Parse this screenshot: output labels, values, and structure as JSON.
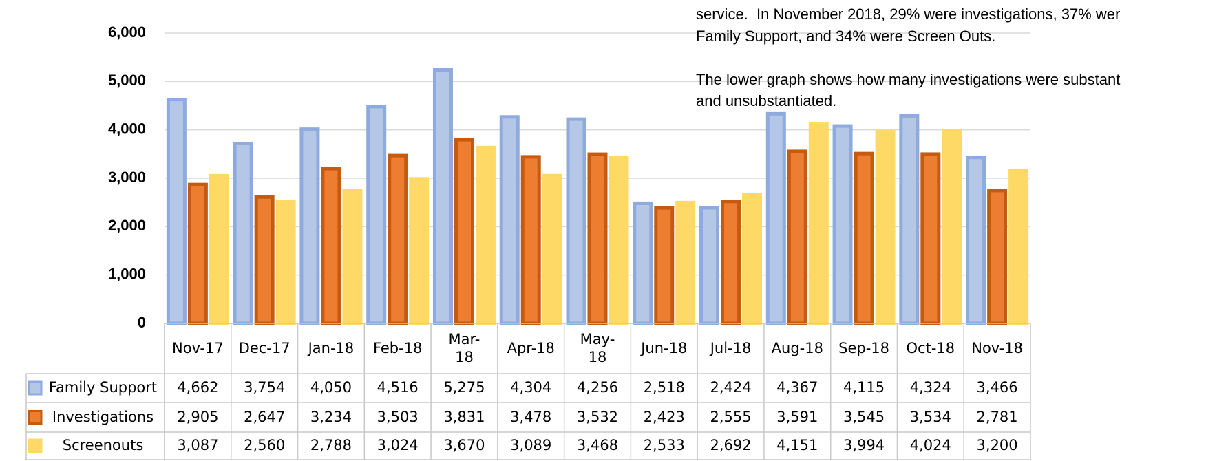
{
  "chart_data": {
    "type": "bar",
    "annotations": [
      "service.  In November 2018, 29% were investigations, 37% wer",
      "Family Support, and 34% were Screen Outs.",
      "The lower graph shows how many investigations were substant",
      "and unsubstantiated."
    ],
    "categories": [
      "Nov-17",
      "Dec-17",
      "Jan-18",
      "Feb-18",
      "Mar-\n18",
      "Apr-18",
      "May-\n18",
      "Jun-18",
      "Jul-18",
      "Aug-18",
      "Sep-18",
      "Oct-18",
      "Nov-18"
    ],
    "series": [
      {
        "name": "Family Support",
        "color": "#b4c7e7",
        "border": "#8faadc",
        "values": [
          4662,
          3754,
          4050,
          4516,
          5275,
          4304,
          4256,
          2518,
          2424,
          4367,
          4115,
          4324,
          3466
        ],
        "value_labels": [
          "4,662",
          "3,754",
          "4,050",
          "4,516",
          "5,275",
          "4,304",
          "4,256",
          "2,518",
          "2,424",
          "4,367",
          "4,115",
          "4,324",
          "3,466"
        ]
      },
      {
        "name": "Investigations",
        "color": "#ed7d31",
        "border": "#c55a11",
        "values": [
          2905,
          2647,
          3234,
          3503,
          3831,
          3478,
          3532,
          2423,
          2555,
          3591,
          3545,
          3534,
          2781
        ],
        "value_labels": [
          "2,905",
          "2,647",
          "3,234",
          "3,503",
          "3,831",
          "3,478",
          "3,532",
          "2,423",
          "2,555",
          "3,591",
          "3,545",
          "3,534",
          "2,781"
        ]
      },
      {
        "name": "Screenouts",
        "color": "#ffd966",
        "border": "#ffd966",
        "values": [
          3087,
          2560,
          2788,
          3024,
          3670,
          3089,
          3468,
          2533,
          2692,
          4151,
          3994,
          4024,
          3200
        ],
        "value_labels": [
          "3,087",
          "2,560",
          "2,788",
          "3,024",
          "3,670",
          "3,089",
          "3,468",
          "2,533",
          "2,692",
          "4,151",
          "3,994",
          "4,024",
          "3,200"
        ]
      }
    ],
    "ylim": [
      0,
      6000
    ],
    "yticks": [
      0,
      {
        "value": 1000,
        "label": "1,000"
      },
      {
        "value": 2000,
        "label": "2,000"
      },
      {
        "value": 3000,
        "label": "3,000"
      },
      {
        "value": 4000,
        "label": "4,000"
      },
      {
        "value": 5000,
        "label": "5,000"
      },
      {
        "value": 6000,
        "label": "6,000"
      }
    ],
    "grid": true
  }
}
